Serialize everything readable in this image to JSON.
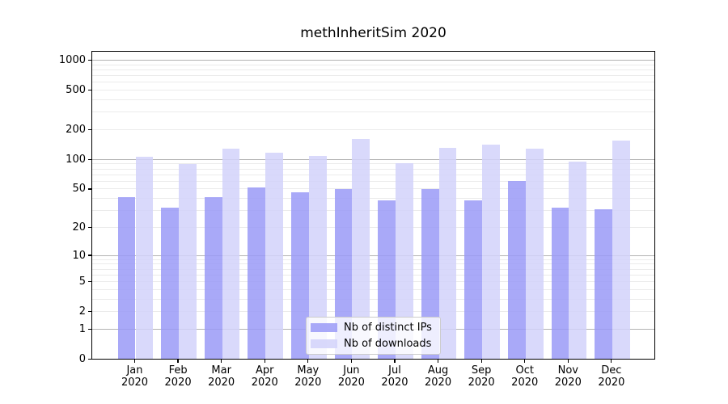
{
  "title": "methInheritSim 2020",
  "chart_data": {
    "type": "bar",
    "title": "methInheritSim 2020",
    "subtitle": "",
    "xlabel": "",
    "ylabel": "",
    "scale": "log1p",
    "ylim": [
      0,
      1000
    ],
    "grid": true,
    "legend_position": "lower center",
    "yticks": [
      0,
      1,
      2,
      5,
      10,
      20,
      50,
      100,
      200,
      500,
      1000
    ],
    "major_gridlines": [
      1,
      10,
      100,
      1000
    ],
    "categories": [
      "Jan 2020",
      "Feb 2020",
      "Mar 2020",
      "Apr 2020",
      "May 2020",
      "Jun 2020",
      "Jul 2020",
      "Aug 2020",
      "Sep 2020",
      "Oct 2020",
      "Nov 2020",
      "Dec 2020"
    ],
    "series": [
      {
        "name": "Nb of distinct IPs",
        "key": "distinct-ips",
        "color": "#9a9af7",
        "values": [
          41,
          32,
          41,
          52,
          46,
          50,
          38,
          50,
          38,
          60,
          32,
          31
        ]
      },
      {
        "name": "Nb of downloads",
        "key": "downloads",
        "color": "#d2d2fa",
        "values": [
          107,
          90,
          128,
          116,
          108,
          160,
          91,
          132,
          140,
          128,
          96,
          155
        ]
      }
    ]
  }
}
